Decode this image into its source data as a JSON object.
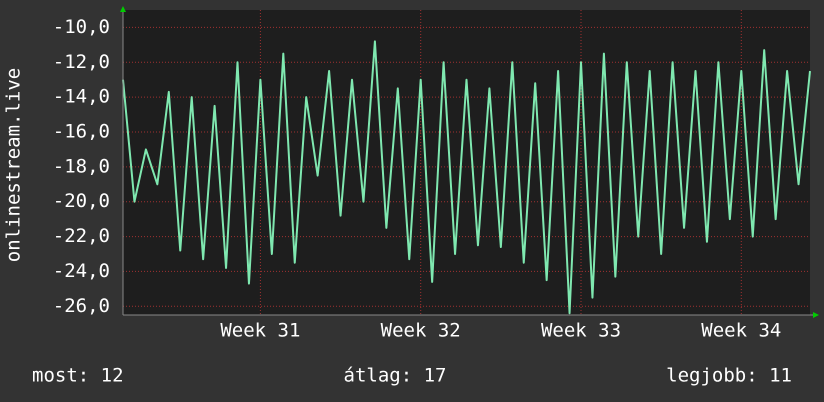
{
  "chart_data": {
    "type": "line",
    "ylabel": "onlinestream.live",
    "categories": [
      null,
      null,
      null,
      null,
      null,
      null,
      null,
      null,
      null,
      null,
      null,
      null,
      "Week 31",
      null,
      null,
      null,
      null,
      null,
      null,
      null,
      null,
      null,
      null,
      null,
      null,
      null,
      "Week 32",
      null,
      null,
      null,
      null,
      null,
      null,
      null,
      null,
      null,
      null,
      null,
      null,
      null,
      "Week 33",
      null,
      null,
      null,
      null,
      null,
      null,
      null,
      null,
      null,
      null,
      null,
      null,
      null,
      "Week 34",
      null,
      null,
      null,
      null,
      null,
      null
    ],
    "values": [
      -13.0,
      -20.0,
      -17.0,
      -19.0,
      -13.7,
      -22.8,
      -14.0,
      -23.3,
      -14.5,
      -23.8,
      -12.0,
      -24.7,
      -13.0,
      -23.0,
      -11.5,
      -23.5,
      -14.0,
      -18.5,
      -12.5,
      -20.8,
      -13.0,
      -20.0,
      -10.8,
      -21.5,
      -13.5,
      -23.3,
      -13.0,
      -24.6,
      -12.0,
      -23.0,
      -13.0,
      -22.5,
      -13.5,
      -22.6,
      -12.0,
      -23.5,
      -13.2,
      -24.5,
      -12.5,
      -26.4,
      -12.0,
      -25.5,
      -11.5,
      -24.3,
      -12.0,
      -22.0,
      -12.5,
      -23.0,
      -12.0,
      -21.5,
      -12.5,
      -22.3,
      -12.0,
      -21.0,
      -12.5,
      -22.0,
      -11.3,
      -21.0,
      -12.5,
      -19.0,
      -12.5
    ],
    "color": "#7fe8b0",
    "ylim": [
      -26.5,
      -9.0
    ],
    "yticks": [
      {
        "value": -10,
        "label": "-10,0"
      },
      {
        "value": -12,
        "label": "-12,0"
      },
      {
        "value": -14,
        "label": "-14,0"
      },
      {
        "value": -16,
        "label": "-16,0"
      },
      {
        "value": -18,
        "label": "-18,0"
      },
      {
        "value": -20,
        "label": "-20,0"
      },
      {
        "value": -22,
        "label": "-22,0"
      },
      {
        "value": -24,
        "label": "-24,0"
      },
      {
        "value": -26,
        "label": "-26,0"
      }
    ],
    "grid": true,
    "stats": [
      "most: 12",
      "átlag: 17",
      "legjobb: 11"
    ]
  }
}
